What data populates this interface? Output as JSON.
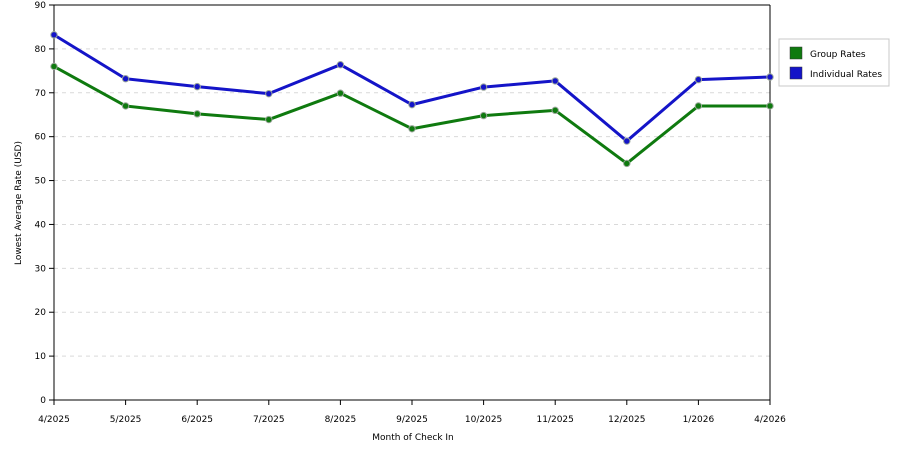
{
  "chart_data": {
    "type": "line",
    "title": "",
    "xlabel": "Month of Check In",
    "ylabel": "Lowest Average Rate (USD)",
    "ylim": [
      0,
      90
    ],
    "yticks": [
      0,
      10,
      20,
      30,
      40,
      50,
      60,
      70,
      80,
      90
    ],
    "grid": true,
    "legend_position": "right",
    "categories": [
      "4/2025",
      "5/2025",
      "6/2025",
      "7/2025",
      "8/2025",
      "9/2025",
      "10/2025",
      "11/2025",
      "12/2025",
      "1/2026",
      "4/2026"
    ],
    "series": [
      {
        "name": "Group Rates",
        "color": "#0f7a0f",
        "values": [
          76,
          67,
          65.2,
          63.9,
          69.9,
          61.8,
          64.8,
          66,
          53.9,
          67,
          67
        ]
      },
      {
        "name": "Individual Rates",
        "color": "#1414c8",
        "values": [
          83.2,
          73.2,
          71.4,
          69.8,
          76.4,
          67.3,
          71.3,
          72.7,
          59,
          73,
          73.6
        ]
      }
    ]
  }
}
